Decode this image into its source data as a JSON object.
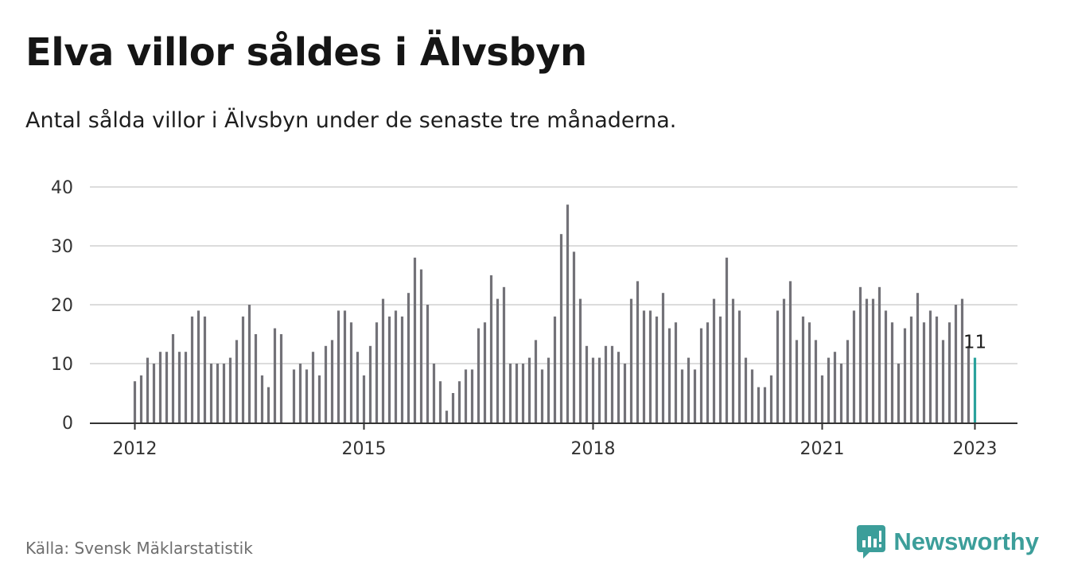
{
  "title": "Elva villor såldes i Älvsbyn",
  "subtitle": "Antal sålda villor i Älvsbyn under de senaste tre månaderna.",
  "source": "Källa: Svensk Mäklarstatistik",
  "brand": {
    "name": "Newsworthy",
    "icon": "newsworthy-logo-icon",
    "color": "#3c9e9a"
  },
  "colors": {
    "bar": "#737278",
    "highlight": "#2aa29c",
    "grid": "#dcdcdc",
    "axis": "#333333"
  },
  "chart_data": {
    "type": "bar",
    "title": "Elva villor såldes i Älvsbyn",
    "xlabel": "",
    "ylabel": "",
    "ylim": [
      0,
      40
    ],
    "yticks": [
      "0",
      "10",
      "20",
      "30",
      "40"
    ],
    "xticks": [
      "2012",
      "2015",
      "2018",
      "2021",
      "2023"
    ],
    "grid": true,
    "start": "2012-01",
    "end": "2023-01",
    "frequency": "monthly",
    "values": [
      7,
      8,
      11,
      10,
      12,
      12,
      15,
      12,
      12,
      18,
      19,
      18,
      10,
      10,
      10,
      11,
      14,
      18,
      20,
      15,
      8,
      6,
      16,
      15,
      null,
      9,
      10,
      9,
      12,
      8,
      13,
      14,
      19,
      19,
      17,
      12,
      8,
      13,
      17,
      21,
      18,
      19,
      18,
      22,
      28,
      26,
      20,
      10,
      7,
      2,
      5,
      7,
      9,
      9,
      16,
      17,
      25,
      21,
      23,
      10,
      10,
      10,
      11,
      14,
      9,
      11,
      18,
      32,
      37,
      29,
      21,
      13,
      11,
      11,
      13,
      13,
      12,
      10,
      21,
      24,
      19,
      19,
      18,
      22,
      16,
      17,
      9,
      11,
      9,
      16,
      17,
      21,
      18,
      28,
      21,
      19,
      11,
      9,
      6,
      6,
      8,
      19,
      21,
      24,
      14,
      18,
      17,
      14,
      8,
      11,
      12,
      10,
      14,
      19,
      23,
      21,
      21,
      23,
      19,
      17,
      10,
      16,
      18,
      22,
      17,
      19,
      18,
      14,
      17,
      20,
      21,
      13,
      11
    ],
    "highlight_index": 132,
    "highlight_label": "11"
  }
}
